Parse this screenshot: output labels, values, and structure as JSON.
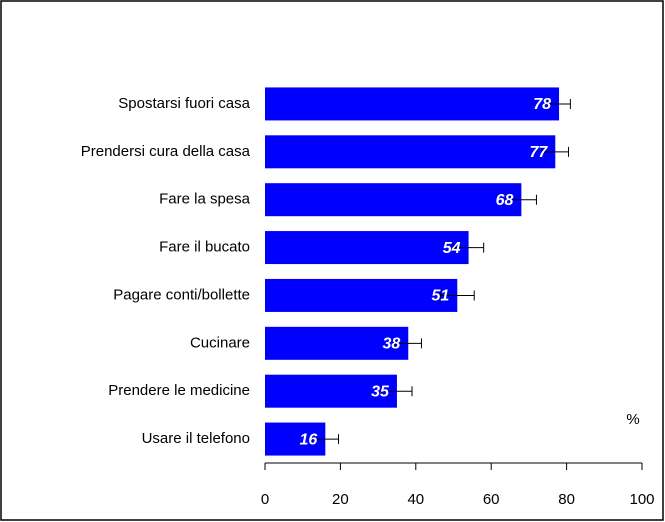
{
  "chart_data": {
    "type": "bar",
    "orientation": "horizontal",
    "unit_label": "%",
    "categories": [
      "Spostarsi fuori casa",
      "Prendersi cura della casa",
      "Fare la spesa",
      "Fare il bucato",
      "Pagare conti/bollette",
      "Cucinare",
      "Prendere le medicine",
      "Usare il telefono"
    ],
    "values": [
      78,
      77,
      68,
      54,
      51,
      38,
      35,
      16
    ],
    "errors": [
      3,
      3.5,
      4,
      4,
      4.5,
      3.5,
      4,
      3.5
    ],
    "color": "#0000ff",
    "xlim": [
      0,
      100
    ],
    "xticks": [
      0,
      20,
      40,
      60,
      80,
      100
    ],
    "grid": false
  }
}
